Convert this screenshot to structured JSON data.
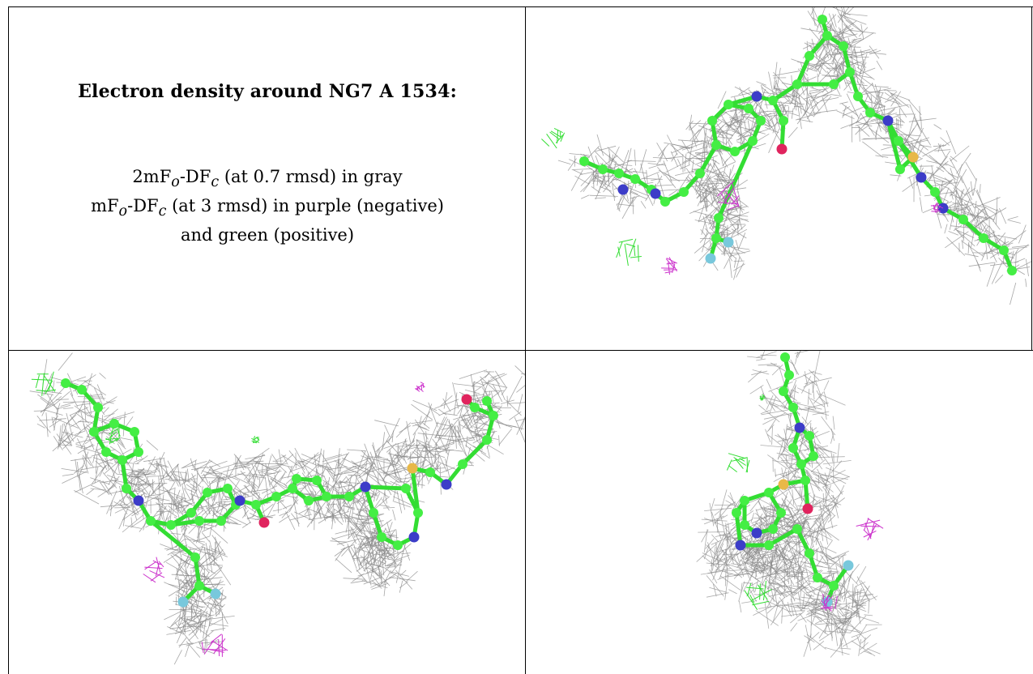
{
  "legend": {
    "title": "Electron density around NG7 A 1534:",
    "line1": {
      "prefix": "2mF",
      "sub1": "o",
      "mid": "-DF",
      "sub2": "c",
      "suffix": " (at 0.7 rmsd) in gray"
    },
    "line2": {
      "prefix": "mF",
      "sub1": "o",
      "mid": "-DF",
      "sub2": "c",
      "suffix": " (at 3 rmsd) in purple (negative)"
    },
    "line3": "and green (positive)"
  },
  "colors": {
    "carbon": "#44ee44",
    "bond": "#33dd33",
    "nitrogen": "#3c3cc8",
    "oxygen": "#e0245e",
    "sulfur": "#e8b848",
    "fluorine": "#78c8dc",
    "mesh_2fofc": "#8a8a8a",
    "mesh_negative": "#cc33cc",
    "mesh_positive": "#33dd33"
  },
  "views": [
    {
      "id": "view-top-right",
      "description_icon": "molecule-view-1"
    },
    {
      "id": "view-bottom-left",
      "description_icon": "molecule-view-2"
    },
    {
      "id": "view-bottom-right",
      "description_icon": "molecule-view-3"
    }
  ]
}
